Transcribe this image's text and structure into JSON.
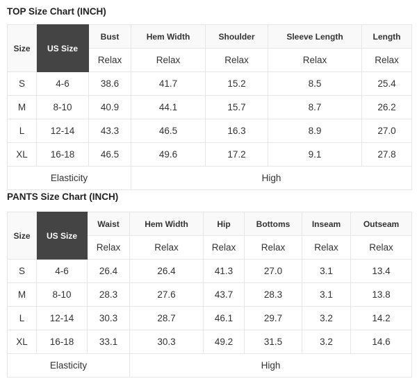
{
  "tables": [
    {
      "id": "top",
      "title": "TOP Size Chart (INCH)",
      "size_header": "Size",
      "us_header": "US Size",
      "us_header_bg": "#444444",
      "columns": [
        "Bust",
        "Hem Width",
        "Shoulder",
        "Sleeve Length",
        "Length"
      ],
      "fit": [
        "Relax",
        "Relax",
        "Relax",
        "Relax",
        "Relax"
      ],
      "rows": [
        {
          "size": "S",
          "us": "4-6",
          "values": [
            "38.6",
            "41.7",
            "15.2",
            "8.5",
            "25.4"
          ]
        },
        {
          "size": "M",
          "us": "8-10",
          "values": [
            "40.9",
            "44.1",
            "15.7",
            "8.7",
            "26.2"
          ]
        },
        {
          "size": "L",
          "us": "12-14",
          "values": [
            "43.3",
            "46.5",
            "16.3",
            "8.9",
            "27.0"
          ]
        },
        {
          "size": "XL",
          "us": "16-18",
          "values": [
            "46.5",
            "49.6",
            "17.2",
            "9.1",
            "27.8"
          ]
        }
      ],
      "footer_label": "Elasticity",
      "footer_value": "High"
    },
    {
      "id": "pants",
      "title": "PANTS Size Chart (INCH)",
      "size_header": "Size",
      "us_header": "US Size",
      "us_header_bg": "#444444",
      "columns": [
        "Waist",
        "Hem Width",
        "Hip",
        "Bottoms",
        "Inseam",
        "Outseam"
      ],
      "fit": [
        "Relax",
        "Relax",
        "Relax",
        "Relax",
        "Relax",
        "Relax"
      ],
      "rows": [
        {
          "size": "S",
          "us": "4-6",
          "values": [
            "26.4",
            "26.4",
            "41.3",
            "27.0",
            "3.1",
            "13.4"
          ]
        },
        {
          "size": "M",
          "us": "8-10",
          "values": [
            "28.3",
            "27.6",
            "43.7",
            "28.3",
            "3.1",
            "13.8"
          ]
        },
        {
          "size": "L",
          "us": "12-14",
          "values": [
            "30.3",
            "28.7",
            "46.1",
            "29.7",
            "3.2",
            "14.2"
          ]
        },
        {
          "size": "XL",
          "us": "16-18",
          "values": [
            "33.1",
            "30.3",
            "49.2",
            "31.5",
            "3.2",
            "14.6"
          ]
        }
      ],
      "footer_label": "Elasticity",
      "footer_value": "High"
    }
  ]
}
